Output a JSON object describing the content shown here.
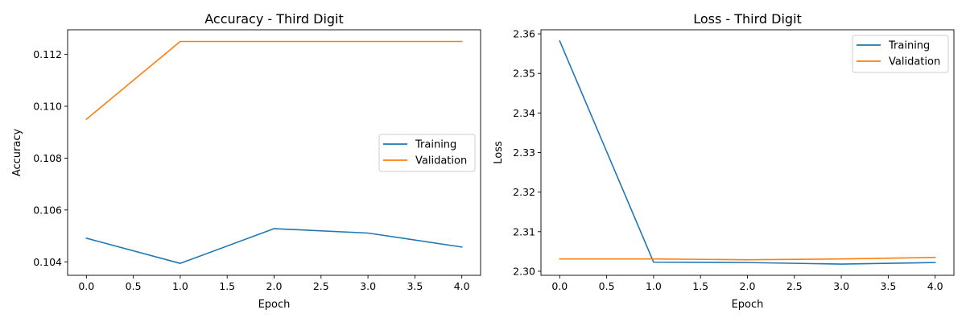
{
  "chart_data": [
    {
      "type": "line",
      "title": "Accuracy - Third Digit",
      "xlabel": "Epoch",
      "ylabel": "Accuracy",
      "x": [
        0,
        1,
        2,
        3,
        4
      ],
      "xlim": [
        -0.2,
        4.2
      ],
      "ylim": [
        0.10348,
        0.11295
      ],
      "xticks": [
        0.0,
        0.5,
        1.0,
        1.5,
        2.0,
        2.5,
        3.0,
        3.5,
        4.0
      ],
      "xtick_labels": [
        "0.0",
        "0.5",
        "1.0",
        "1.5",
        "2.0",
        "2.5",
        "3.0",
        "3.5",
        "4.0"
      ],
      "yticks": [
        0.104,
        0.106,
        0.108,
        0.11,
        0.112
      ],
      "ytick_labels": [
        "0.104",
        "0.106",
        "0.108",
        "0.110",
        "0.112"
      ],
      "grid": false,
      "legend_position": "center-right",
      "series": [
        {
          "name": "Training",
          "color": "#1f77b4",
          "values": [
            0.10491,
            0.10394,
            0.10528,
            0.10511,
            0.10457
          ]
        },
        {
          "name": "Validation",
          "color": "#ff7f0e",
          "values": [
            0.1095,
            0.1125,
            0.1125,
            0.1125,
            0.1125
          ]
        }
      ]
    },
    {
      "type": "line",
      "title": "Loss - Third Digit",
      "xlabel": "Epoch",
      "ylabel": "Loss",
      "x": [
        0,
        1,
        2,
        3,
        4
      ],
      "xlim": [
        -0.2,
        4.2
      ],
      "ylim": [
        2.29897,
        2.36103
      ],
      "xticks": [
        0.0,
        0.5,
        1.0,
        1.5,
        2.0,
        2.5,
        3.0,
        3.5,
        4.0
      ],
      "xtick_labels": [
        "0.0",
        "0.5",
        "1.0",
        "1.5",
        "2.0",
        "2.5",
        "3.0",
        "3.5",
        "4.0"
      ],
      "yticks": [
        2.3,
        2.31,
        2.32,
        2.33,
        2.34,
        2.35,
        2.36
      ],
      "ytick_labels": [
        "2.30",
        "2.31",
        "2.32",
        "2.33",
        "2.34",
        "2.35",
        "2.36"
      ],
      "grid": false,
      "legend_position": "top-right",
      "series": [
        {
          "name": "Training",
          "color": "#1f77b4",
          "values": [
            2.3582,
            2.3023,
            2.3022,
            2.3018,
            2.3022
          ]
        },
        {
          "name": "Validation",
          "color": "#ff7f0e",
          "values": [
            2.3031,
            2.3031,
            2.3029,
            2.3031,
            2.3035
          ]
        }
      ]
    }
  ]
}
